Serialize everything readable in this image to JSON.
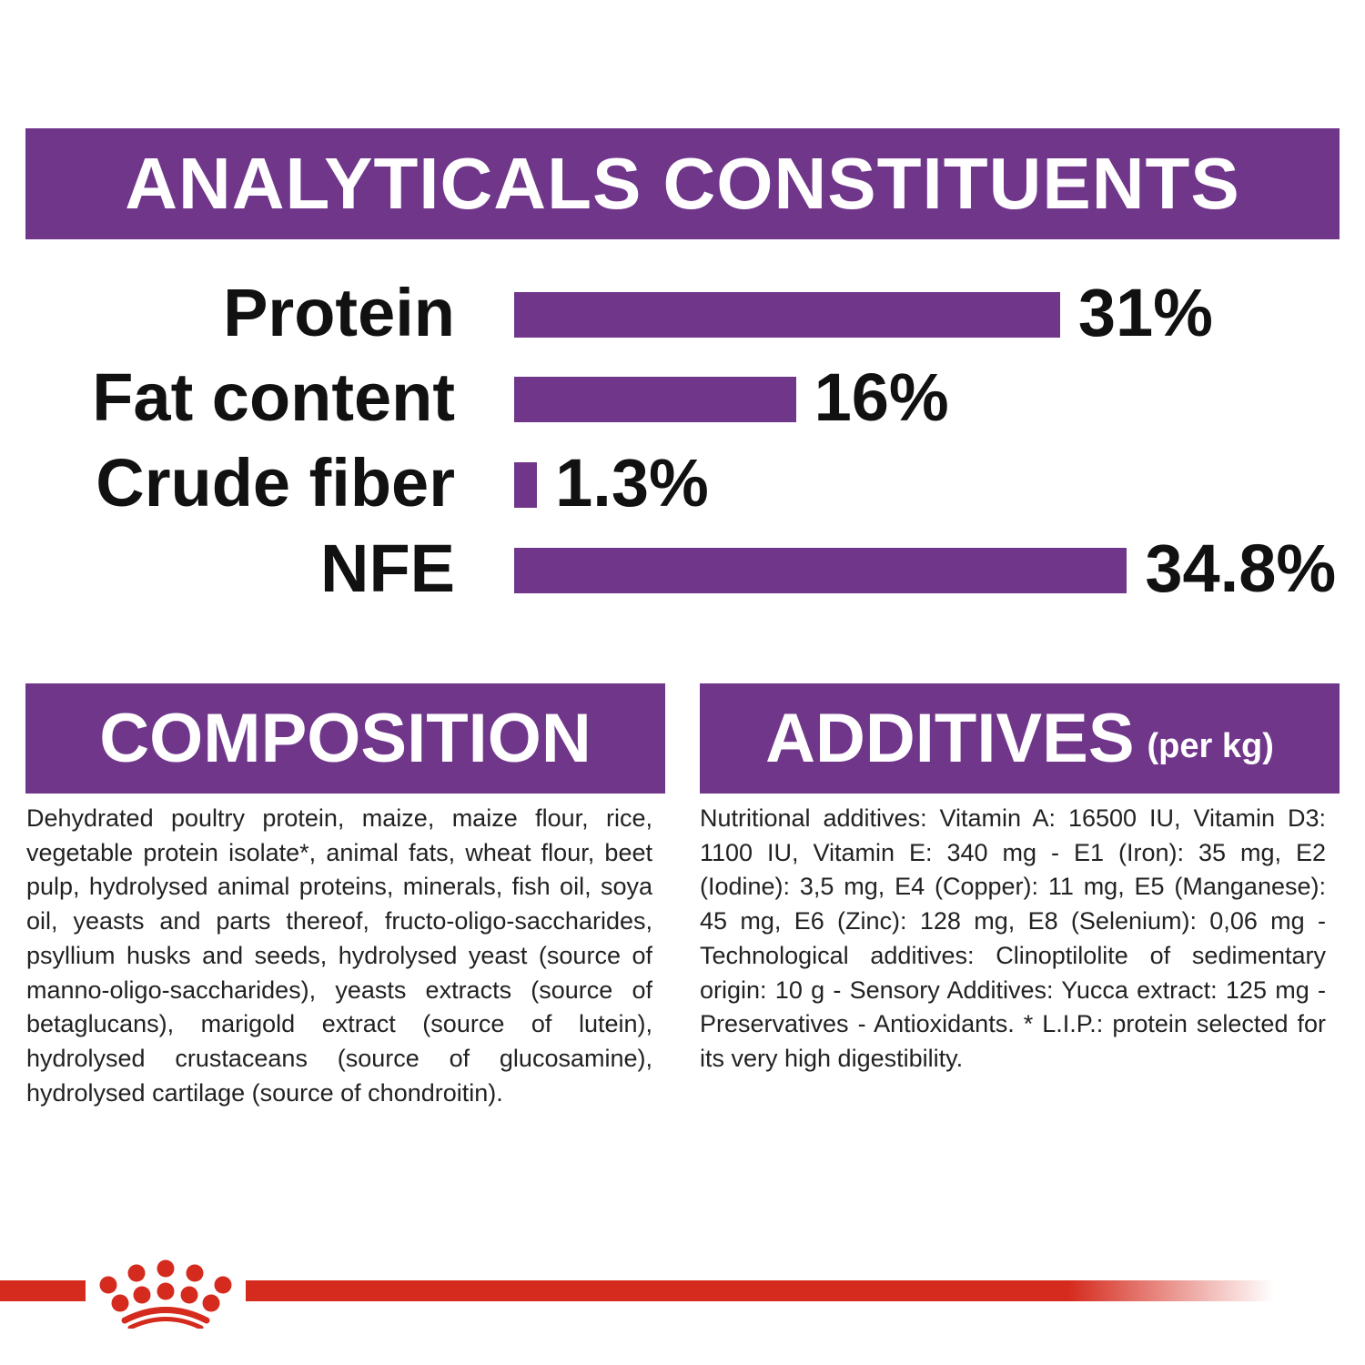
{
  "colors": {
    "accent": "#70368a",
    "brand_red": "#d52b1e"
  },
  "logo": {
    "name": "crown-logo",
    "text": "Royal Canin"
  },
  "analytics": {
    "title": "ANALYTICALS CONSTITUENTS"
  },
  "chart_data": {
    "type": "bar",
    "orientation": "horizontal",
    "title": "ANALYTICALS CONSTITUENTS",
    "categories": [
      "Protein",
      "Fat content",
      "Crude fiber",
      "NFE"
    ],
    "values": [
      31,
      16,
      1.3,
      34.8
    ],
    "value_labels": [
      "31%",
      "16%",
      "1.3%",
      "34.8%"
    ],
    "unit": "%",
    "grid": false
  },
  "composition": {
    "title": "COMPOSITION",
    "text": "Dehydrated poultry protein, maize, maize flour, rice, vegetable protein isolate*, animal fats, wheat flour, beet pulp, hydrolysed animal proteins, minerals, fish oil, soya oil, yeasts and parts thereof, fructo-oligo-saccharides, psyllium husks and seeds, hydrolysed yeast (source of manno-oligo-saccharides), yeasts extracts (source of betaglucans), marigold extract (source of lutein), hydrolysed crustaceans (source of glucosamine), hydrolysed cartilage (source of chondroitin)."
  },
  "additives": {
    "title": "ADDITIVES",
    "subtitle": "(per kg)",
    "text": "Nutritional additives: Vitamin A: 16500 IU, Vitamin D3: 1100 IU, Vitamin E: 340 mg - E1 (Iron): 35 mg, E2 (Iodine): 3,5 mg, E4 (Copper): 11 mg, E5 (Manganese): 45 mg, E6 (Zinc): 128 mg, E8 (Selenium): 0,06 mg - Technological additives: Clinoptilolite of sedimentary origin: 10 g - Sensory Additives: Yucca extract: 125 mg - Preservatives - Antioxidants. * L.I.P.: protein selected for its very high digestibility."
  }
}
